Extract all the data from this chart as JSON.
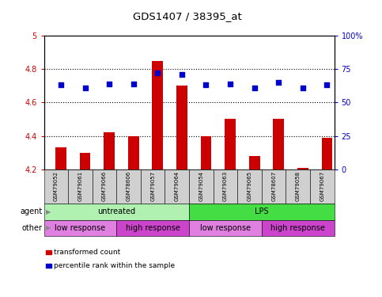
{
  "title": "GDS1407 / 38395_at",
  "samples": [
    "GSM79052",
    "GSM79061",
    "GSM79066",
    "GSM78606",
    "GSM79057",
    "GSM79064",
    "GSM79054",
    "GSM79063",
    "GSM79065",
    "GSM78607",
    "GSM79058",
    "GSM79067"
  ],
  "bar_values": [
    4.33,
    4.3,
    4.42,
    4.4,
    4.85,
    4.7,
    4.4,
    4.5,
    4.28,
    4.5,
    4.21,
    4.39
  ],
  "dot_values": [
    63,
    61,
    64,
    64,
    72,
    71,
    63,
    64,
    61,
    65,
    61,
    63
  ],
  "bar_color": "#cc0000",
  "dot_color": "#0000cc",
  "ylim_left": [
    4.2,
    5.0
  ],
  "ylim_right": [
    0,
    100
  ],
  "yticks_left": [
    4.2,
    4.4,
    4.6,
    4.8,
    5.0
  ],
  "yticks_right": [
    0,
    25,
    50,
    75,
    100
  ],
  "ytick_labels_left": [
    "4.2",
    "4.4",
    "4.6",
    "4.8",
    "5"
  ],
  "ytick_labels_right": [
    "0",
    "25",
    "50",
    "75",
    "100%"
  ],
  "agent_groups": [
    {
      "label": "untreated",
      "start": 0,
      "end": 6,
      "color": "#b0f0b0"
    },
    {
      "label": "LPS",
      "start": 6,
      "end": 12,
      "color": "#44dd44"
    }
  ],
  "other_groups": [
    {
      "label": "low response",
      "start": 0,
      "end": 3,
      "color": "#e080e0"
    },
    {
      "label": "high response",
      "start": 3,
      "end": 6,
      "color": "#cc44cc"
    },
    {
      "label": "low response",
      "start": 6,
      "end": 9,
      "color": "#e080e0"
    },
    {
      "label": "high response",
      "start": 9,
      "end": 12,
      "color": "#cc44cc"
    }
  ],
  "legend_items": [
    {
      "label": "transformed count",
      "color": "#cc0000"
    },
    {
      "label": "percentile rank within the sample",
      "color": "#0000cc"
    }
  ],
  "dotted_grid_values": [
    4.4,
    4.6,
    4.8
  ],
  "background_color": "#ffffff",
  "xlim": [
    -0.7,
    11.3
  ]
}
